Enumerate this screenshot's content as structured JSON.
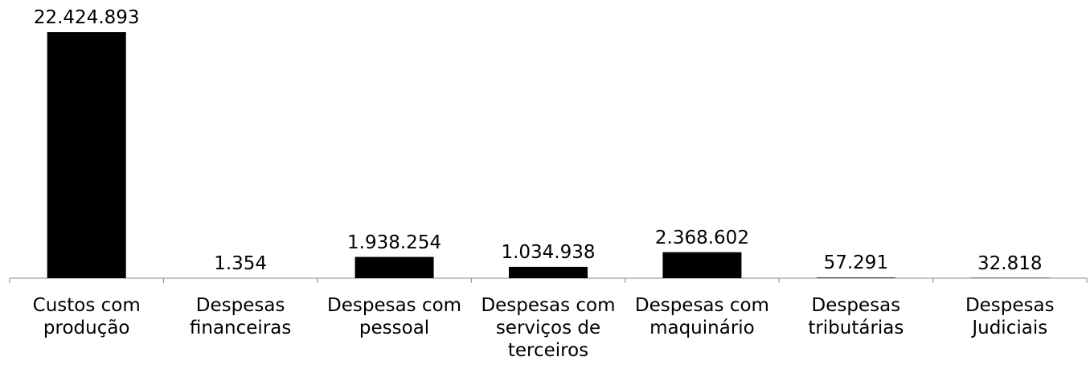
{
  "chart_data": {
    "type": "bar",
    "categories": [
      "Custos com produção",
      "Despesas financeiras",
      "Despesas com pessoal",
      "Despesas com serviços de terceiros",
      "Despesas com maquinário",
      "Despesas tributárias",
      "Despesas Judiciais"
    ],
    "values": [
      22424893,
      1354,
      1938254,
      1034938,
      2368602,
      57291,
      32818
    ],
    "value_labels": [
      "22.424.893",
      "1.354",
      "1.938.254",
      "1.034.938",
      "2.368.602",
      "57.291",
      "32.818"
    ],
    "color": "#000000"
  }
}
